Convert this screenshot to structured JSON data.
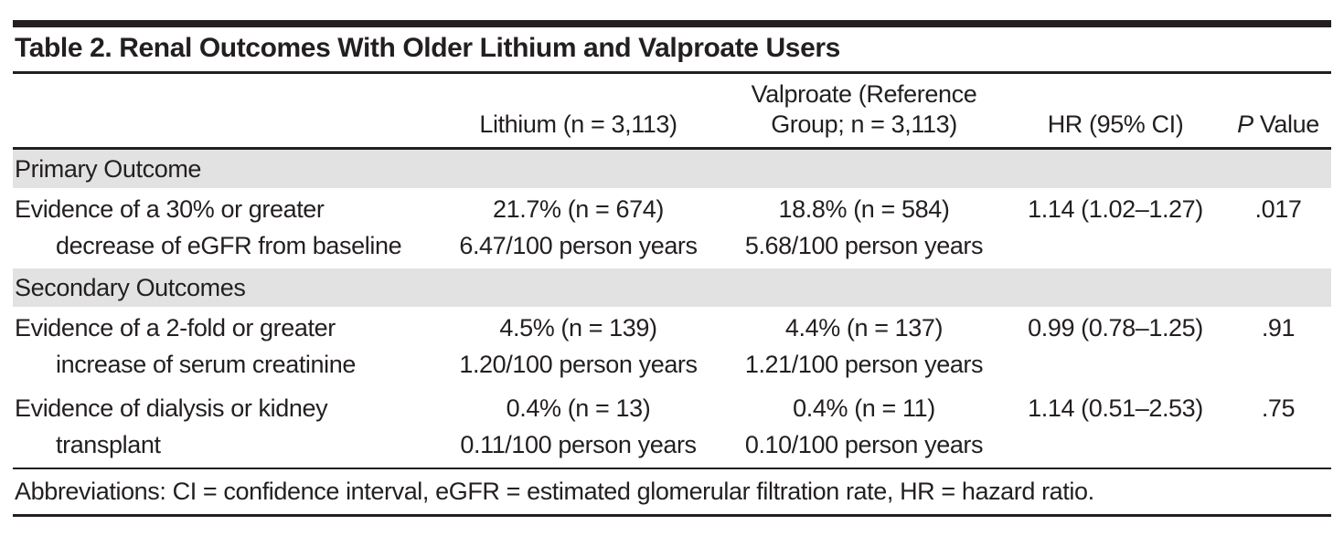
{
  "colors": {
    "ink": "#231f20",
    "band_gray": "#e2e2e2",
    "background": "#ffffff"
  },
  "table": {
    "title": "Table 2. Renal Outcomes With Older Lithium and Valproate Users",
    "header": {
      "outcome": "",
      "lithium": "Lithium (n = 3,113)",
      "valproate_line1": "Valproate (Reference",
      "valproate_line2": "Group; n = 3,113)",
      "hr": "HR (95% CI)",
      "p_italic": "P",
      "p_rest": " Value"
    },
    "sections": [
      {
        "label": "Primary Outcome",
        "rows": [
          {
            "outcome1": "Evidence of a 30% or greater",
            "outcome2": "decrease of eGFR from baseline",
            "lithium1": "21.7% (n = 674)",
            "lithium2": "6.47/100 person years",
            "valproate1": "18.8% (n = 584)",
            "valproate2": "5.68/100 person years",
            "hr": "1.14 (1.02–1.27)",
            "p": ".017"
          }
        ]
      },
      {
        "label": "Secondary Outcomes",
        "rows": [
          {
            "outcome1": "Evidence of a 2-fold or greater",
            "outcome2": "increase of serum creatinine",
            "lithium1": "4.5% (n = 139)",
            "lithium2": "1.20/100 person years",
            "valproate1": "4.4% (n = 137)",
            "valproate2": "1.21/100 person years",
            "hr": "0.99 (0.78–1.25)",
            "p": ".91"
          },
          {
            "outcome1": "Evidence of dialysis or kidney",
            "outcome2": "transplant",
            "lithium1": "0.4% (n = 13)",
            "lithium2": "0.11/100 person years",
            "valproate1": "0.4% (n = 11)",
            "valproate2": "0.10/100 person years",
            "hr": "1.14 (0.51–2.53)",
            "p": ".75"
          }
        ]
      }
    ],
    "footnote": "Abbreviations: CI = confidence interval, eGFR = estimated glomerular filtration rate, HR = hazard ratio."
  }
}
